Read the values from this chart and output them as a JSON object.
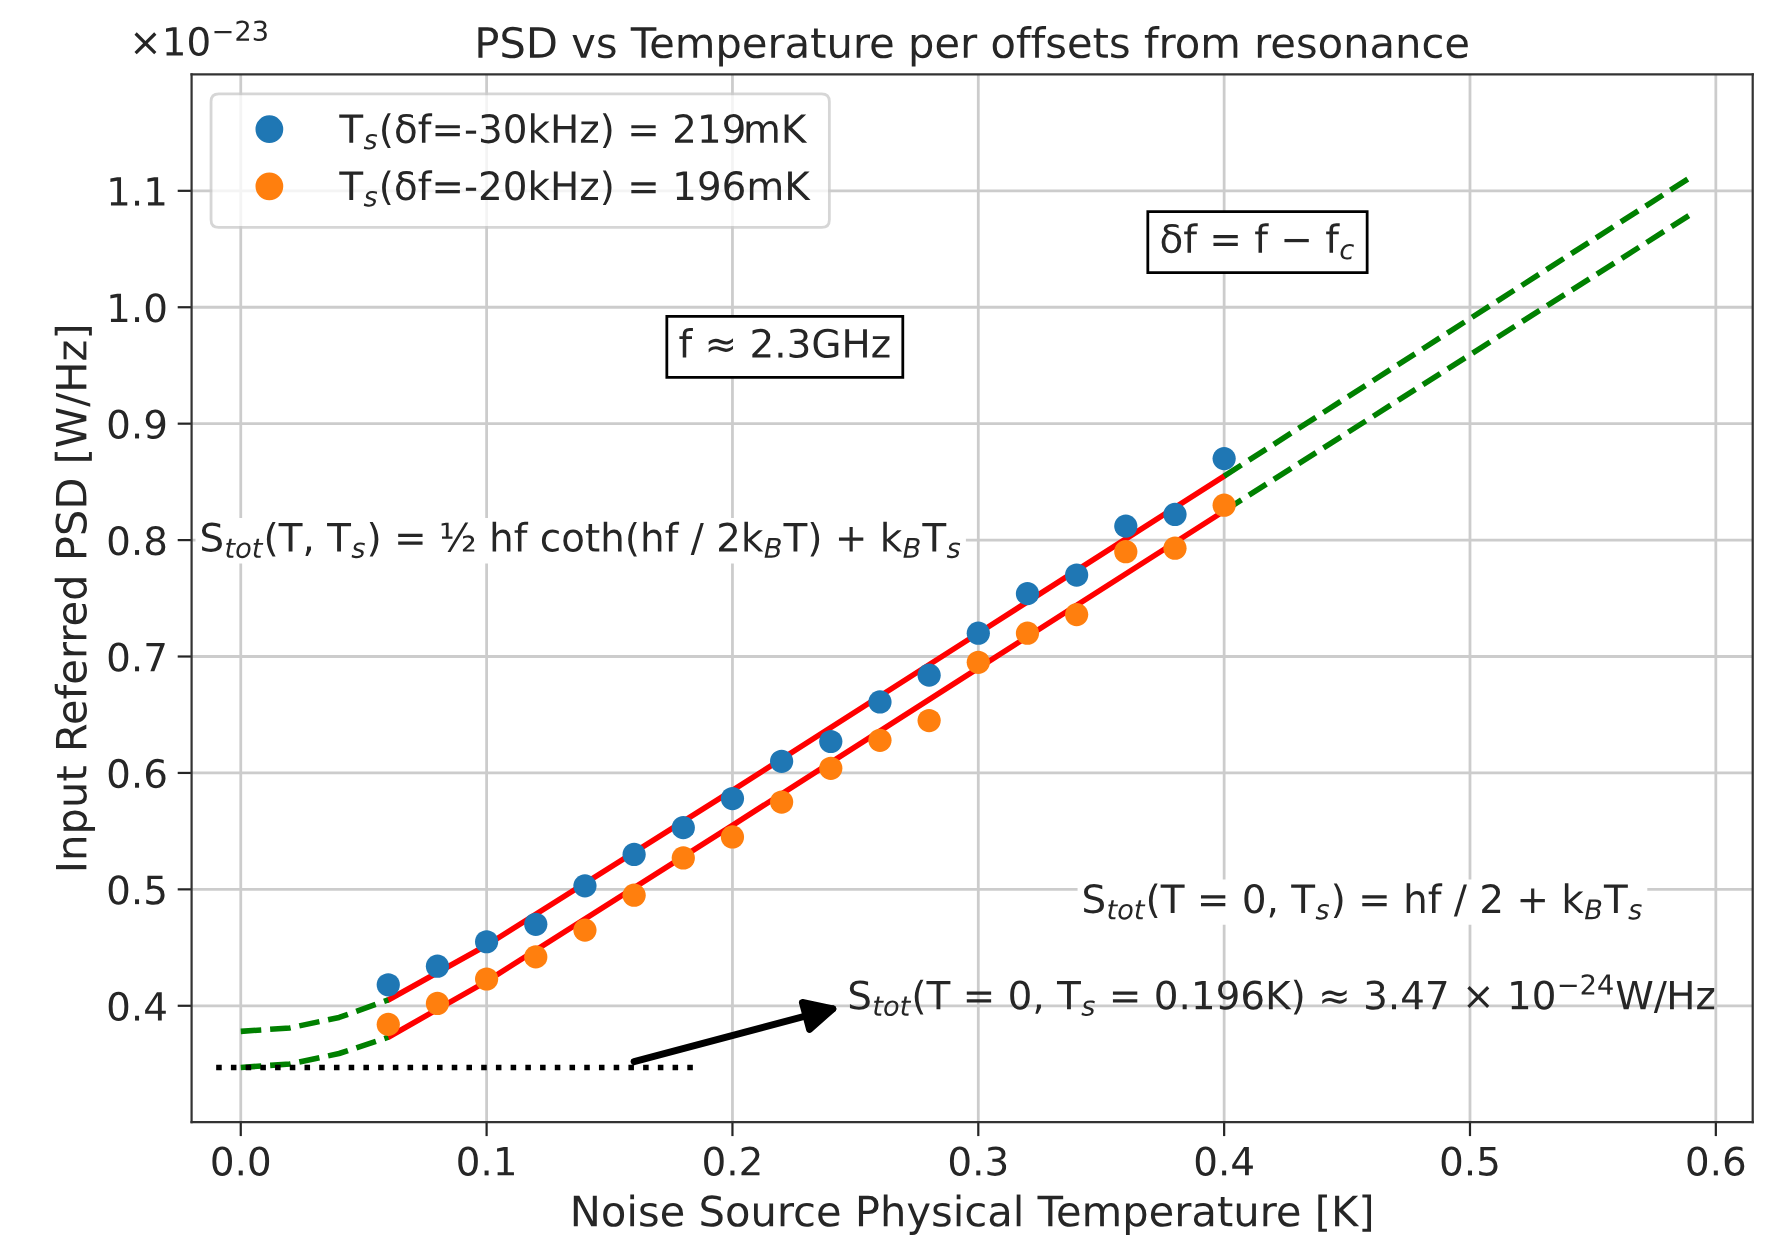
{
  "chart_data": {
    "type": "scatter",
    "title": "PSD vs Temperature per offsets from resonance",
    "xlabel": "Noise Source Physical Temperature [K]",
    "ylabel": "Input Referred PSD [W/Hz]",
    "xlim": [
      -0.02,
      0.615
    ],
    "ylim": [
      0.3,
      1.2
    ],
    "xticks": [
      {
        "value": 0,
        "label": "0.0"
      },
      0.1,
      0.2,
      0.3,
      0.4,
      0.5,
      0.6
    ],
    "yticks": [
      0.4,
      0.5,
      0.6,
      0.7,
      0.8,
      0.9,
      {
        "value": 1,
        "label": "1.0"
      },
      1.1
    ],
    "grid": true,
    "legend": "top left",
    "series": [
      {
        "type": "scatter",
        "marker": "circle",
        "name": "T$_{s}$(δf=-30kHz) = 219mK",
        "color": "#1f77b4",
        "x": [
          0.06,
          0.08,
          0.1,
          0.12,
          0.14,
          0.16,
          0.18,
          0.2,
          0.22,
          0.24,
          0.26,
          0.28,
          0.3,
          0.32,
          0.34,
          0.36,
          0.38,
          0.4
        ],
        "values": [
          0.418,
          0.434,
          0.455,
          0.47,
          0.503,
          0.53,
          0.553,
          0.578,
          0.61,
          0.627,
          0.661,
          0.684,
          0.72,
          0.754,
          0.77,
          0.812,
          0.822,
          0.87
        ]
      },
      {
        "type": "scatter",
        "marker": "circle",
        "name": "T$_{s}$(δf=-20kHz) = 196mK",
        "color": "#ff7f0e",
        "x": [
          0.06,
          0.08,
          0.1,
          0.12,
          0.14,
          0.16,
          0.18,
          0.2,
          0.22,
          0.24,
          0.26,
          0.28,
          0.3,
          0.32,
          0.34,
          0.36,
          0.38,
          0.4
        ],
        "values": [
          0.384,
          0.402,
          0.423,
          0.442,
          0.465,
          0.495,
          0.527,
          0.545,
          0.575,
          0.604,
          0.628,
          0.645,
          0.695,
          0.72,
          0.736,
          0.79,
          0.793,
          0.83
        ]
      },
      {
        "type": "line",
        "color": "#ff0000",
        "line_style": "solid",
        "x": [
          0.06,
          0.1,
          0.2,
          0.3,
          0.4
        ],
        "values": [
          0.405,
          0.452,
          0.585,
          0.72,
          0.855
        ]
      },
      {
        "type": "line",
        "color": "#ff0000",
        "line_style": "solid",
        "x": [
          0.06,
          0.1,
          0.2,
          0.3,
          0.4
        ],
        "values": [
          0.373,
          0.421,
          0.555,
          0.69,
          0.825
        ]
      },
      {
        "type": "line",
        "color": "#008000",
        "line_style": "dashed",
        "x": [
          0.0,
          0.02,
          0.04,
          0.06
        ],
        "values": [
          0.378,
          0.381,
          0.39,
          0.405
        ]
      },
      {
        "type": "line",
        "color": "#008000",
        "line_style": "dashed",
        "x": [
          0.0,
          0.02,
          0.04,
          0.06
        ],
        "values": [
          0.347,
          0.35,
          0.359,
          0.373
        ]
      },
      {
        "type": "line",
        "color": "#008000",
        "line_style": "dashed",
        "x": [
          0.4,
          0.59
        ],
        "values": [
          0.855,
          1.112
        ]
      },
      {
        "type": "line",
        "color": "#008000",
        "line_style": "dashed",
        "x": [
          0.4,
          0.59
        ],
        "values": [
          0.825,
          1.08
        ]
      },
      {
        "type": "line",
        "color": "#000000",
        "line_style": "dotted",
        "x": [
          -0.01,
          0.185
        ],
        "values": [
          0.347,
          0.347
        ]
      }
    ],
    "annotations": [
      "×10$^{−23}$",
      "δf = f − f$_{c}$",
      "f ≈ 2.3GHz",
      "S$_{tot}$(T, T$_{s}$) = ½ hf coth(hf / 2k$_{B}$T) + k$_{B}$T$_{s}$",
      "S$_{tot}$(T = 0, T$_{s}$) = hf / 2 + k$_{B}$T$_{s}$",
      {
        "text": "S$_{tot}$(T = 0, T$_{s}$ = 0.196K) ≈ 3.47 × 10$^{−24}$W/Hz",
        "x": 0.16,
        "y": 0.352
      }
    ]
  }
}
